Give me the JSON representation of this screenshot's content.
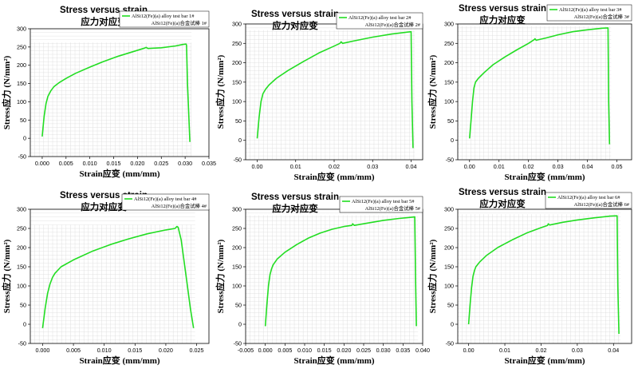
{
  "chart_data": [
    {
      "type": "line",
      "title": "Stress versus strain",
      "subtitle": "应力对应变",
      "xlabel": "Strain应变 (mm/mm)",
      "ylabel": "Stress应力 (N/mm²)",
      "xlim": [
        -0.0025,
        0.035
      ],
      "ylim": [
        -50,
        300
      ],
      "xticks": [
        "0.000",
        "0.005",
        "0.010",
        "0.015",
        "0.020",
        "0.025",
        "0.030",
        "0.035"
      ],
      "yticks": [
        "-50",
        "0",
        "50",
        "100",
        "150",
        "200",
        "250",
        "300"
      ],
      "grid": true,
      "legend_position": "top-right",
      "color": "#22dd22",
      "series": [
        {
          "name": "AlSi12(Fe)(a) alloy test bar 1#",
          "name_cn": "AlSi12(Fe)(a)合金试棒 1#",
          "x": [
            0,
            0.0004,
            0.0008,
            0.0012,
            0.0018,
            0.0025,
            0.0035,
            0.005,
            0.007,
            0.01,
            0.013,
            0.016,
            0.019,
            0.0215,
            0.0218,
            0.0222,
            0.025,
            0.028,
            0.0295,
            0.0302,
            0.0303,
            0.0305,
            0.031
          ],
          "y": [
            5,
            60,
            95,
            115,
            130,
            142,
            152,
            164,
            178,
            195,
            211,
            225,
            237,
            247,
            249,
            246,
            248,
            253,
            257,
            258,
            255,
            150,
            -10
          ]
        }
      ]
    },
    {
      "type": "line",
      "title": "Stress versus strain",
      "subtitle": "应力对应变",
      "xlabel": "Strain应变 (mm/mm)",
      "ylabel": "Stress应力 (N/mm²)",
      "xlim": [
        -0.003,
        0.043
      ],
      "ylim": [
        -50,
        300
      ],
      "xticks": [
        "0.00",
        "0.01",
        "0.02",
        "0.03",
        "0.04"
      ],
      "yticks": [
        "-50",
        "0",
        "50",
        "100",
        "150",
        "200",
        "250",
        "300"
      ],
      "grid": true,
      "legend_position": "top-right",
      "color": "#22dd22",
      "series": [
        {
          "name": "AlSi12(Fe)(a) alloy test bar 2#",
          "name_cn": "AlSi12(Fe)(a)合金试棒 2#",
          "x": [
            0,
            0.0005,
            0.001,
            0.0015,
            0.0022,
            0.003,
            0.005,
            0.008,
            0.012,
            0.016,
            0.02,
            0.0215,
            0.0218,
            0.0222,
            0.025,
            0.03,
            0.035,
            0.039,
            0.04,
            0.0402,
            0.0405
          ],
          "y": [
            5,
            60,
            100,
            120,
            132,
            142,
            160,
            180,
            203,
            225,
            243,
            250,
            254,
            250,
            256,
            266,
            274,
            279,
            280,
            100,
            -20
          ]
        }
      ]
    },
    {
      "type": "line",
      "title": "Stress versus strain",
      "subtitle": "应力对应变",
      "xlabel": "Strain应变 (mm/mm)",
      "ylabel": "Stress应力 (N/mm²)",
      "xlim": [
        -0.004,
        0.055
      ],
      "ylim": [
        -50,
        300
      ],
      "xticks": [
        "0.00",
        "0.01",
        "0.02",
        "0.03",
        "0.04",
        "0.05"
      ],
      "yticks": [
        "-50",
        "0",
        "50",
        "100",
        "150",
        "200",
        "250",
        "300"
      ],
      "grid": true,
      "legend_position": "top-right",
      "color": "#22dd22",
      "series": [
        {
          "name": "AlSi12(Fe)(a) alloy test bar 3#",
          "name_cn": "AlSi12(Fe)(a)合金试棒 3#",
          "x": [
            0,
            0.0005,
            0.001,
            0.0015,
            0.002,
            0.003,
            0.005,
            0.008,
            0.012,
            0.016,
            0.02,
            0.022,
            0.0222,
            0.0226,
            0.026,
            0.03,
            0.035,
            0.04,
            0.045,
            0.047,
            0.0472,
            0.0475
          ],
          "y": [
            5,
            50,
            100,
            135,
            150,
            160,
            175,
            195,
            215,
            233,
            250,
            260,
            262,
            258,
            264,
            272,
            280,
            285,
            289,
            290,
            100,
            -10
          ]
        }
      ]
    },
    {
      "type": "line",
      "title": "Stress versus strain",
      "subtitle": "应力对应变",
      "xlabel": "Strain应变 (mm/mm)",
      "ylabel": "Stress应力 (N/mm²)",
      "xlim": [
        -0.002,
        0.027
      ],
      "ylim": [
        -50,
        300
      ],
      "xticks": [
        "0.000",
        "0.005",
        "0.010",
        "0.015",
        "0.020",
        "0.025"
      ],
      "yticks": [
        "-50",
        "0",
        "50",
        "100",
        "150",
        "200",
        "250",
        "300"
      ],
      "grid": true,
      "legend_position": "top-right",
      "color": "#22dd22",
      "series": [
        {
          "name": "AlSi12(Fe)(a) alloy test bar 4#",
          "name_cn": "AlSi12(Fe)(a)合金试棒 4#",
          "x": [
            0,
            0.0004,
            0.0008,
            0.0012,
            0.0016,
            0.002,
            0.003,
            0.005,
            0.008,
            0.011,
            0.014,
            0.017,
            0.02,
            0.0215,
            0.0218,
            0.022,
            0.0225,
            0.023,
            0.0235,
            0.024,
            0.0245
          ],
          "y": [
            -10,
            40,
            80,
            105,
            122,
            133,
            150,
            168,
            190,
            208,
            223,
            236,
            246,
            250,
            255,
            253,
            220,
            160,
            100,
            40,
            -10
          ]
        }
      ]
    },
    {
      "type": "line",
      "title": "Stress versus strain",
      "subtitle": "应力对应变",
      "xlabel": "Strain应变 (mm/mm)",
      "ylabel": "Stress应力 (N/mm²)",
      "xlim": [
        -0.005,
        0.04
      ],
      "ylim": [
        -50,
        300
      ],
      "xticks": [
        "-0.005",
        "0.000",
        "0.005",
        "0.010",
        "0.015",
        "0.020",
        "0.025",
        "0.030",
        "0.035",
        "0.040"
      ],
      "yticks": [
        "-50",
        "0",
        "50",
        "100",
        "150",
        "200",
        "250",
        "300"
      ],
      "grid": true,
      "legend_position": "top-right",
      "color": "#22dd22",
      "series": [
        {
          "name": "AlSi12(Fe)(a) alloy test bar 5#",
          "name_cn": "AlSi12(Fe)(a)合金试棒 5#",
          "x": [
            0,
            0.0004,
            0.0008,
            0.0012,
            0.0016,
            0.002,
            0.003,
            0.005,
            0.008,
            0.011,
            0.014,
            0.017,
            0.02,
            0.022,
            0.0222,
            0.0226,
            0.026,
            0.03,
            0.034,
            0.037,
            0.038,
            0.0382,
            0.0384
          ],
          "y": [
            -5,
            50,
            100,
            130,
            145,
            155,
            170,
            188,
            208,
            225,
            238,
            248,
            255,
            258,
            262,
            258,
            264,
            271,
            276,
            279,
            280,
            120,
            -5
          ]
        }
      ]
    },
    {
      "type": "line",
      "title": "Stress versus strain",
      "subtitle": "应力对应变",
      "xlabel": "Strain应变 (mm/mm)",
      "ylabel": "Stress应力 (N/mm²)",
      "xlim": [
        -0.003,
        0.045
      ],
      "ylim": [
        -50,
        300
      ],
      "xticks": [
        "0.00",
        "0.01",
        "0.02",
        "0.03",
        "0.04"
      ],
      "yticks": [
        "-50",
        "0",
        "50",
        "100",
        "150",
        "200",
        "250",
        "300"
      ],
      "grid": true,
      "legend_position": "top-right",
      "color": "#22dd22",
      "series": [
        {
          "name": "AlSi12(Fe)(a) alloy test bar 6#",
          "name_cn": "AlSi12(Fe)(a)合金试棒 6#",
          "x": [
            0,
            0.0004,
            0.0008,
            0.0012,
            0.0016,
            0.002,
            0.003,
            0.005,
            0.008,
            0.012,
            0.016,
            0.02,
            0.0218,
            0.022,
            0.0224,
            0.026,
            0.03,
            0.035,
            0.039,
            0.041,
            0.0412,
            0.0415
          ],
          "y": [
            0,
            50,
            95,
            125,
            140,
            150,
            162,
            180,
            200,
            220,
            238,
            252,
            258,
            262,
            259,
            266,
            272,
            278,
            282,
            283,
            100,
            -25
          ]
        }
      ]
    }
  ]
}
